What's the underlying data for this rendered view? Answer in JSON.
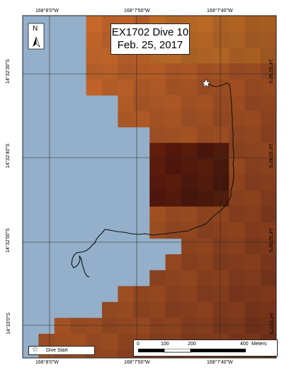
{
  "title": {
    "line1": "EX1702 Dive 10",
    "line2": "Feb. 25, 2017"
  },
  "longitude_labels": [
    "168°8'0\"W",
    "168°7'50\"W",
    "168°7'40\"W"
  ],
  "latitude_labels": [
    "14°32'30\"S",
    "14°32'40\"S",
    "14°32'50\"S",
    "14°33'0\"S"
  ],
  "north_arrow": {
    "letter": "N",
    "icon": "north-arrow-icon"
  },
  "legend": {
    "marker_icon": "star-outline-icon",
    "label": "Dive Start"
  },
  "scale_bar": {
    "ticks": [
      "0",
      "100",
      "200",
      "400"
    ],
    "unit": "Meters"
  },
  "colors": {
    "land_blue": "#93afc9",
    "terrain_orange": "#c66a2a",
    "terrain_dark": "#4a1c10",
    "grid_line": "#2a2a2a",
    "track": "#111111"
  }
}
